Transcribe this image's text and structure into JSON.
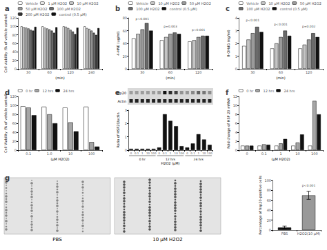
{
  "chart_data": [
    {
      "type": "bar",
      "title": "a",
      "ylabel": "Cell viability (% of vehicle control)",
      "xlabel": "(min)",
      "categories": [
        "30",
        "60",
        "120",
        "240"
      ],
      "series": [
        {
          "name": "Vehicle",
          "color": "#ffffff",
          "values": [
            100,
            100,
            100,
            100
          ]
        },
        {
          "name": "1 μM H2O2",
          "color": "#e6e6e6",
          "values": [
            98,
            97,
            99,
            96
          ]
        },
        {
          "name": "10 μM H2O2",
          "color": "#c4c4c4",
          "values": [
            97,
            95,
            96,
            94
          ]
        },
        {
          "name": "50 μM H2O2",
          "color": "#9a9a9a",
          "values": [
            95,
            93,
            92,
            90
          ]
        },
        {
          "name": "100 μM H2O2",
          "color": "#6a6a6a",
          "values": [
            92,
            90,
            88,
            85
          ]
        },
        {
          "name": "200 μM H2O2",
          "color": "#333333",
          "values": [
            90,
            85,
            82,
            80
          ]
        },
        {
          "name": "control (0.5 μM)",
          "color": "#111111",
          "values": [
            99,
            98,
            97,
            96
          ]
        }
      ],
      "ylim": [
        0,
        120
      ],
      "yticks": [
        0,
        20,
        40,
        60,
        80,
        100,
        120
      ],
      "grid": false,
      "legend": "top"
    },
    {
      "type": "bar",
      "title": "b",
      "ylabel": "4-HNE (ug/ml)",
      "xlabel": "(min)",
      "categories": [
        "30",
        "60",
        "120"
      ],
      "series": [
        {
          "name": "Vehicle",
          "color": "#ffffff",
          "values": [
            48,
            45,
            43
          ]
        },
        {
          "name": "10 μM H2O2",
          "color": "#c4c4c4",
          "values": [
            55,
            50,
            45
          ]
        },
        {
          "name": "50 μM H2O2",
          "color": "#9a9a9a",
          "values": [
            62,
            55,
            50
          ]
        },
        {
          "name": "100 μM H2O2",
          "color": "#6a6a6a",
          "values": [
            72,
            57,
            52
          ]
        },
        {
          "name": "control (0.5 μM)",
          "color": "#111111",
          "values": [
            60,
            55,
            52
          ]
        }
      ],
      "annotations": [
        {
          "x": "30",
          "y": 78,
          "text": "p<0.001"
        },
        {
          "x": "60",
          "y": 66,
          "text": "p=0.003"
        },
        {
          "x": "120",
          "y": 61,
          "text": "p<0.001"
        }
      ],
      "ylim": [
        0,
        80
      ],
      "yticks": [
        0,
        20,
        40,
        60,
        80
      ],
      "grid": false,
      "legend": "top"
    },
    {
      "type": "bar",
      "title": "c",
      "ylabel": "8-OHdG (ng/ml)",
      "xlabel": "(min)",
      "categories": [
        "30",
        "60",
        "120"
      ],
      "series": [
        {
          "name": "Vehicle",
          "color": "#ffffff",
          "values": [
            1.8,
            1.6,
            1.6
          ]
        },
        {
          "name": "10 μM H2O2",
          "color": "#c4c4c4",
          "values": [
            2.3,
            2.0,
            1.9
          ]
        },
        {
          "name": "50 μM H2O2",
          "color": "#9a9a9a",
          "values": [
            2.8,
            2.5,
            2.3
          ]
        },
        {
          "name": "100 μM H2O2",
          "color": "#6a6a6a",
          "values": [
            3.3,
            3.0,
            2.8
          ]
        },
        {
          "name": "control (0.5 μM)",
          "color": "#111111",
          "values": [
            2.9,
            2.6,
            2.5
          ]
        }
      ],
      "annotations": [
        {
          "x": "30",
          "y": 3.8,
          "text": "p<0.001"
        },
        {
          "x": "60",
          "y": 3.5,
          "text": "p<0.001"
        },
        {
          "x": "120",
          "y": 3.3,
          "text": "p=0.002"
        }
      ],
      "ylim": [
        0,
        4
      ],
      "yticks": [
        0,
        1,
        2,
        3,
        4
      ],
      "grid": false,
      "legend": "top"
    },
    {
      "type": "bar",
      "title": "d",
      "ylabel": "Cell Viability (% of vehicle control)",
      "xlabel": "(μM H2O2)",
      "categories": [
        "0.1",
        "1.0",
        "10",
        "100"
      ],
      "series": [
        {
          "name": "0 hr",
          "color": "#ffffff",
          "values": [
            98,
            97,
            95,
            97
          ]
        },
        {
          "name": "12 hrs",
          "color": "#a6a6a6",
          "values": [
            95,
            80,
            62,
            18
          ]
        },
        {
          "name": "24 hrs",
          "color": "#111111",
          "values": [
            78,
            60,
            42,
            8
          ]
        }
      ],
      "ylim": [
        0,
        120
      ],
      "yticks": [
        0,
        20,
        40,
        60,
        80,
        100,
        120
      ],
      "grid": false,
      "legend": "top"
    },
    {
      "type": "bar",
      "title": "e",
      "ylabel": "Ratio of HSP20/actin",
      "xlabel": "H2O2 (μM)",
      "categories": [
        "0",
        "0.1",
        "1",
        "10",
        "100",
        "0",
        "0.1",
        "1",
        "10",
        "100",
        "0",
        "0.1",
        "1",
        "10",
        "100"
      ],
      "groups": [
        "0 hr",
        "12 hrs",
        "24 hrs"
      ],
      "blot_rows": [
        "Hsp20",
        "Actin"
      ],
      "values": [
        0.1,
        0.1,
        0.1,
        0.1,
        0.1,
        0.2,
        2.7,
        2.2,
        1.8,
        0.3,
        0.2,
        0.5,
        1.2,
        0.8,
        0.4
      ],
      "color": "#111111",
      "ylim": [
        0,
        3
      ],
      "yticks": [
        0,
        1,
        2,
        3
      ],
      "grid": false
    },
    {
      "type": "bar",
      "title": "f",
      "ylabel": "Fold change of HSP 20 mRNA",
      "xlabel": "(μM H2O2)",
      "categories": [
        "0",
        "0.1",
        "1",
        "10",
        "100"
      ],
      "series": [
        {
          "name": "0 hr",
          "color": "#ffffff",
          "values": [
            1,
            1,
            1,
            1,
            1
          ]
        },
        {
          "name": "12 hrs",
          "color": "#a6a6a6",
          "values": [
            1,
            1.3,
            1.5,
            1.7,
            11
          ]
        },
        {
          "name": "24 hrs",
          "color": "#111111",
          "values": [
            1,
            1.2,
            2.5,
            3.5,
            8
          ]
        }
      ],
      "ylim": [
        0,
        12
      ],
      "yticks": [
        0,
        2,
        4,
        6,
        8,
        10,
        12
      ],
      "grid": false,
      "legend": "top"
    },
    {
      "type": "bar",
      "title": "g",
      "ylabel": "Percentage of hsp20-positive cells",
      "categories": [
        "PBS",
        "H2O2(10 μM)"
      ],
      "values": [
        5,
        70
      ],
      "errors": [
        3,
        8
      ],
      "colors": [
        "#111111",
        "#999999"
      ],
      "images": [
        "PBS",
        "10 μM H2O2"
      ],
      "annotations": [
        {
          "x": "H2O2(10 μM)",
          "y": 90,
          "text": "p<0.001"
        }
      ],
      "ylim": [
        0,
        100
      ],
      "yticks": [
        0,
        20,
        40,
        60,
        80,
        100
      ],
      "grid": false
    }
  ]
}
